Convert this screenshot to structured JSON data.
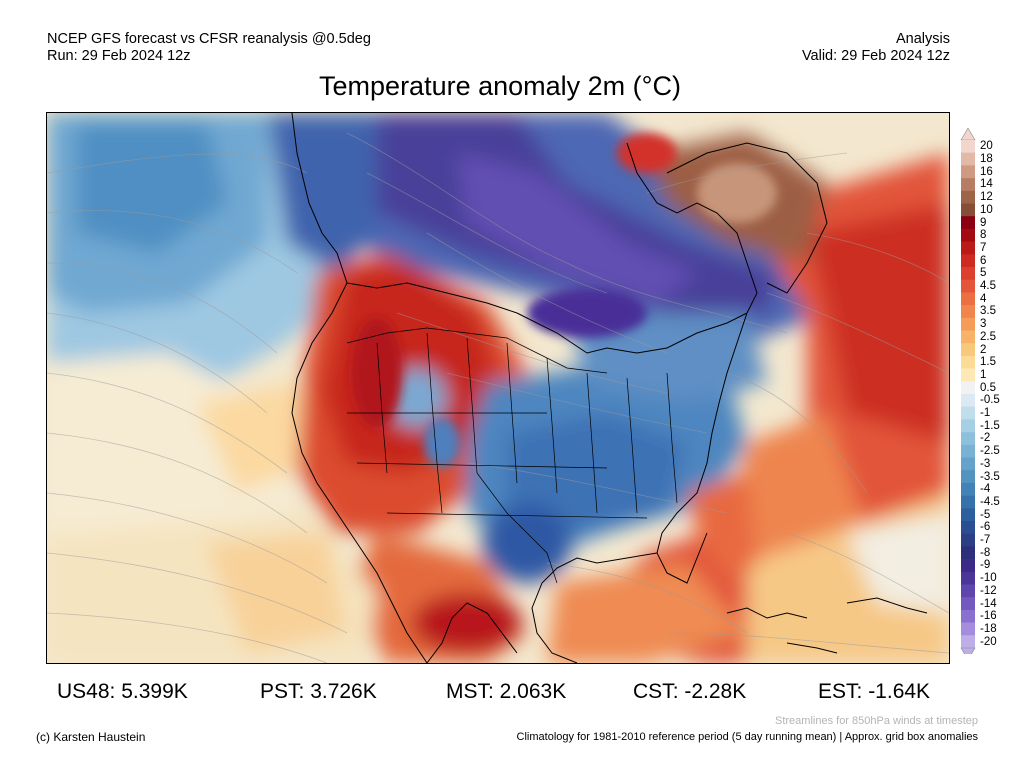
{
  "header": {
    "model_line": "NCEP GFS forecast vs CFSR reanalysis @0.5deg",
    "run_line": "Run: 29 Feb 2024 12z",
    "type_line": "Analysis",
    "valid_line": "Valid: 29 Feb 2024 12z"
  },
  "title": "Temperature anomaly 2m (°C)",
  "colorbar": {
    "labels": [
      "20",
      "18",
      "16",
      "14",
      "12",
      "10",
      "9",
      "8",
      "7",
      "6",
      "5",
      "4.5",
      "4",
      "3.5",
      "3",
      "2.5",
      "2",
      "1.5",
      "1",
      "0.5",
      "-0.5",
      "-1",
      "-1.5",
      "-2",
      "-2.5",
      "-3",
      "-3.5",
      "-4",
      "-4.5",
      "-5",
      "-6",
      "-7",
      "-8",
      "-9",
      "-10",
      "-12",
      "-14",
      "-16",
      "-18",
      "-20"
    ],
    "colors": [
      "#f2d6cd",
      "#e2b8a6",
      "#cf9a82",
      "#b77c64",
      "#9e6448",
      "#864e37",
      "#8c0012",
      "#a30b12",
      "#bb1a19",
      "#cf2a22",
      "#dc3f2e",
      "#e4553a",
      "#ec6e43",
      "#f0854d",
      "#f49c58",
      "#f7b468",
      "#f9c97b",
      "#fbdb95",
      "#fce9b6",
      "#f2f2f2",
      "#dbeaf2",
      "#c0ddec",
      "#a6cfe4",
      "#8ec0dc",
      "#79b2d3",
      "#65a3ca",
      "#5393c0",
      "#4282b6",
      "#3571aa",
      "#2c5f9e",
      "#2a4e92",
      "#2b3f85",
      "#2e2f7a",
      "#3b2a86",
      "#4b3598",
      "#5e46ae",
      "#7358c0",
      "#8a70cf",
      "#a38ddc",
      "#bdaee8"
    ]
  },
  "stats": [
    {
      "region": "US48",
      "value": "5.399K"
    },
    {
      "region": "PST",
      "value": "3.726K"
    },
    {
      "region": "MST",
      "value": "2.063K"
    },
    {
      "region": "CST",
      "value": "-2.28K"
    },
    {
      "region": "EST",
      "value": "-1.64K"
    }
  ],
  "streamline_note": "Streamlines for 850hPa winds at timestep",
  "copyright": "(c) Karsten Haustein",
  "climatology_note": "Climatology for 1981-2010 reference period (5 day running mean) | Approx. grid box anomalies"
}
